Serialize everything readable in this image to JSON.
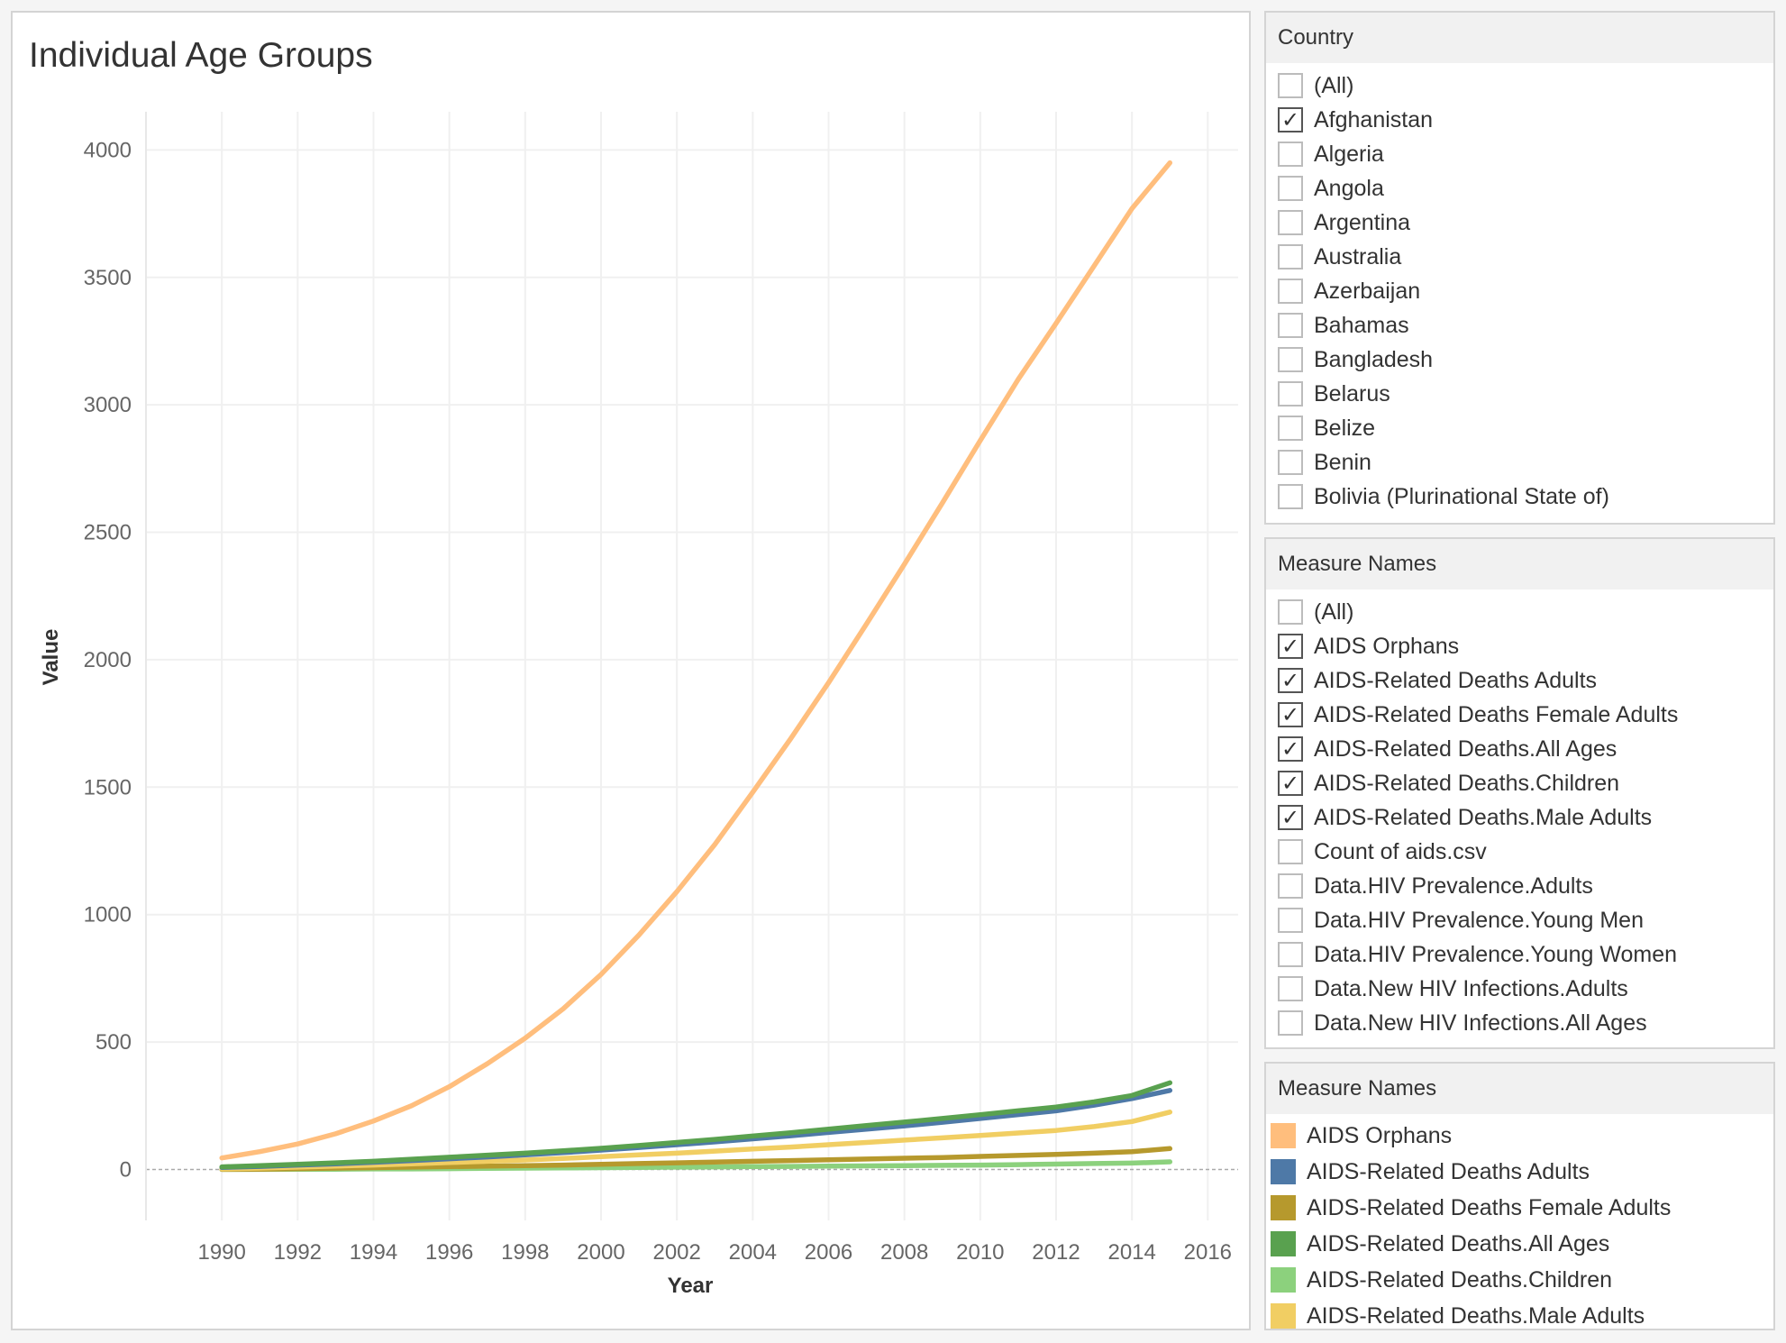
{
  "title": "Individual Age Groups",
  "country_filter": {
    "header": "Country",
    "items": [
      {
        "label": "(All)",
        "checked": false
      },
      {
        "label": "Afghanistan",
        "checked": true
      },
      {
        "label": "Algeria",
        "checked": false
      },
      {
        "label": "Angola",
        "checked": false
      },
      {
        "label": "Argentina",
        "checked": false
      },
      {
        "label": "Australia",
        "checked": false
      },
      {
        "label": "Azerbaijan",
        "checked": false
      },
      {
        "label": "Bahamas",
        "checked": false
      },
      {
        "label": "Bangladesh",
        "checked": false
      },
      {
        "label": "Belarus",
        "checked": false
      },
      {
        "label": "Belize",
        "checked": false
      },
      {
        "label": "Benin",
        "checked": false
      },
      {
        "label": "Bolivia (Plurinational State of)",
        "checked": false
      }
    ]
  },
  "measure_filter": {
    "header": "Measure Names",
    "items": [
      {
        "label": "(All)",
        "checked": false
      },
      {
        "label": "AIDS Orphans",
        "checked": true
      },
      {
        "label": "AIDS-Related Deaths Adults",
        "checked": true
      },
      {
        "label": "AIDS-Related Deaths Female Adults",
        "checked": true
      },
      {
        "label": "AIDS-Related Deaths.All Ages",
        "checked": true
      },
      {
        "label": "AIDS-Related Deaths.Children",
        "checked": true
      },
      {
        "label": "AIDS-Related Deaths.Male Adults",
        "checked": true
      },
      {
        "label": "Count of aids.csv",
        "checked": false
      },
      {
        "label": "Data.HIV Prevalence.Adults",
        "checked": false
      },
      {
        "label": "Data.HIV Prevalence.Young Men",
        "checked": false
      },
      {
        "label": "Data.HIV Prevalence.Young Women",
        "checked": false
      },
      {
        "label": "Data.New HIV Infections.Adults",
        "checked": false
      },
      {
        "label": "Data.New HIV Infections.All Ages",
        "checked": false
      }
    ]
  },
  "legend": {
    "header": "Measure Names",
    "items": [
      {
        "label": "AIDS Orphans",
        "color": "#ffbe7d"
      },
      {
        "label": "AIDS-Related Deaths Adults",
        "color": "#4e79a7"
      },
      {
        "label": "AIDS-Related Deaths Female Adults",
        "color": "#b6992d"
      },
      {
        "label": "AIDS-Related Deaths.All Ages",
        "color": "#59a14f"
      },
      {
        "label": "AIDS-Related Deaths.Children",
        "color": "#8cd17d"
      },
      {
        "label": "AIDS-Related Deaths.Male Adults",
        "color": "#f1ce63"
      }
    ]
  },
  "chart_data": {
    "type": "line",
    "title": "Individual Age Groups",
    "xlabel": "Year",
    "ylabel": "Value",
    "x": [
      1990,
      1991,
      1992,
      1993,
      1994,
      1995,
      1996,
      1997,
      1998,
      1999,
      2000,
      2001,
      2002,
      2003,
      2004,
      2005,
      2006,
      2007,
      2008,
      2009,
      2010,
      2011,
      2012,
      2013,
      2014,
      2015
    ],
    "xlim": [
      1988,
      2016.8
    ],
    "x_ticks": [
      1990,
      1992,
      1994,
      1996,
      1998,
      2000,
      2002,
      2004,
      2006,
      2008,
      2010,
      2012,
      2014,
      2016
    ],
    "ylim": [
      -200,
      4150
    ],
    "y_ticks": [
      0,
      500,
      1000,
      1500,
      2000,
      2500,
      3000,
      3500,
      4000
    ],
    "grid": true,
    "series": [
      {
        "name": "AIDS Orphans",
        "color": "#ffbe7d",
        "values": [
          45,
          70,
          100,
          140,
          190,
          250,
          325,
          415,
          515,
          630,
          765,
          920,
          1090,
          1275,
          1480,
          1690,
          1910,
          2140,
          2375,
          2615,
          2860,
          3100,
          3320,
          3545,
          3770,
          3950
        ]
      },
      {
        "name": "AIDS-Related Deaths.All Ages",
        "color": "#59a14f",
        "values": [
          10,
          15,
          20,
          26,
          32,
          40,
          48,
          56,
          64,
          73,
          83,
          94,
          106,
          118,
          131,
          144,
          158,
          172,
          186,
          200,
          215,
          230,
          245,
          265,
          290,
          340
        ]
      },
      {
        "name": "AIDS-Related Deaths Adults",
        "color": "#4e79a7",
        "values": [
          8,
          12,
          17,
          22,
          28,
          35,
          42,
          49,
          57,
          66,
          76,
          86,
          97,
          108,
          120,
          132,
          145,
          158,
          171,
          185,
          200,
          215,
          230,
          252,
          278,
          310
        ]
      },
      {
        "name": "AIDS-Related Deaths.Male Adults",
        "color": "#f1ce63",
        "values": [
          2,
          5,
          9,
          13,
          17,
          22,
          27,
          32,
          37,
          43,
          50,
          57,
          64,
          72,
          80,
          88,
          97,
          106,
          115,
          124,
          133,
          143,
          153,
          168,
          188,
          225
        ]
      },
      {
        "name": "AIDS-Related Deaths Female Adults",
        "color": "#b6992d",
        "values": [
          0,
          1,
          3,
          5,
          7,
          9,
          11,
          13,
          15,
          17,
          20,
          23,
          26,
          29,
          32,
          35,
          38,
          41,
          44,
          47,
          51,
          55,
          59,
          64,
          70,
          82
        ]
      },
      {
        "name": "AIDS-Related Deaths.Children",
        "color": "#8cd17d",
        "values": [
          0,
          0,
          1,
          1,
          2,
          2,
          3,
          4,
          5,
          6,
          7,
          8,
          9,
          10,
          11,
          12,
          13,
          14,
          15,
          16,
          17,
          19,
          21,
          23,
          25,
          30
        ]
      }
    ]
  }
}
